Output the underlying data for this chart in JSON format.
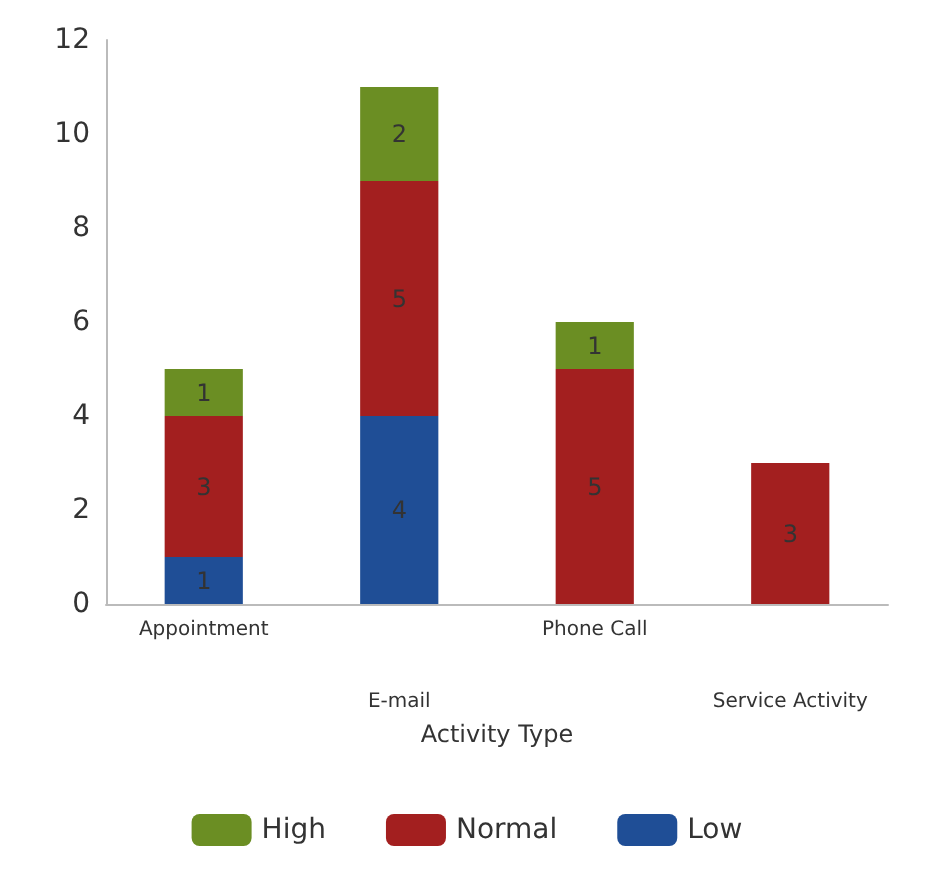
{
  "chart_data": {
    "type": "bar",
    "stacked": true,
    "xlabel": "Activity Type",
    "categories": [
      "Appointment",
      "E-mail",
      "Phone Call",
      "Service Activity"
    ],
    "series": [
      {
        "name": "Low",
        "color": "#1f4e96",
        "values": [
          1,
          4,
          null,
          null
        ]
      },
      {
        "name": "Normal",
        "color": "#a31f1f",
        "values": [
          3,
          5,
          5,
          3
        ]
      },
      {
        "name": "High",
        "color": "#6b8e23",
        "values": [
          1,
          2,
          1,
          null
        ]
      }
    ],
    "ylim": [
      0,
      12
    ],
    "yticks": [
      0,
      2,
      4,
      6,
      8,
      10,
      12
    ],
    "grid": false,
    "legend": "bottom",
    "data_labels": true
  }
}
